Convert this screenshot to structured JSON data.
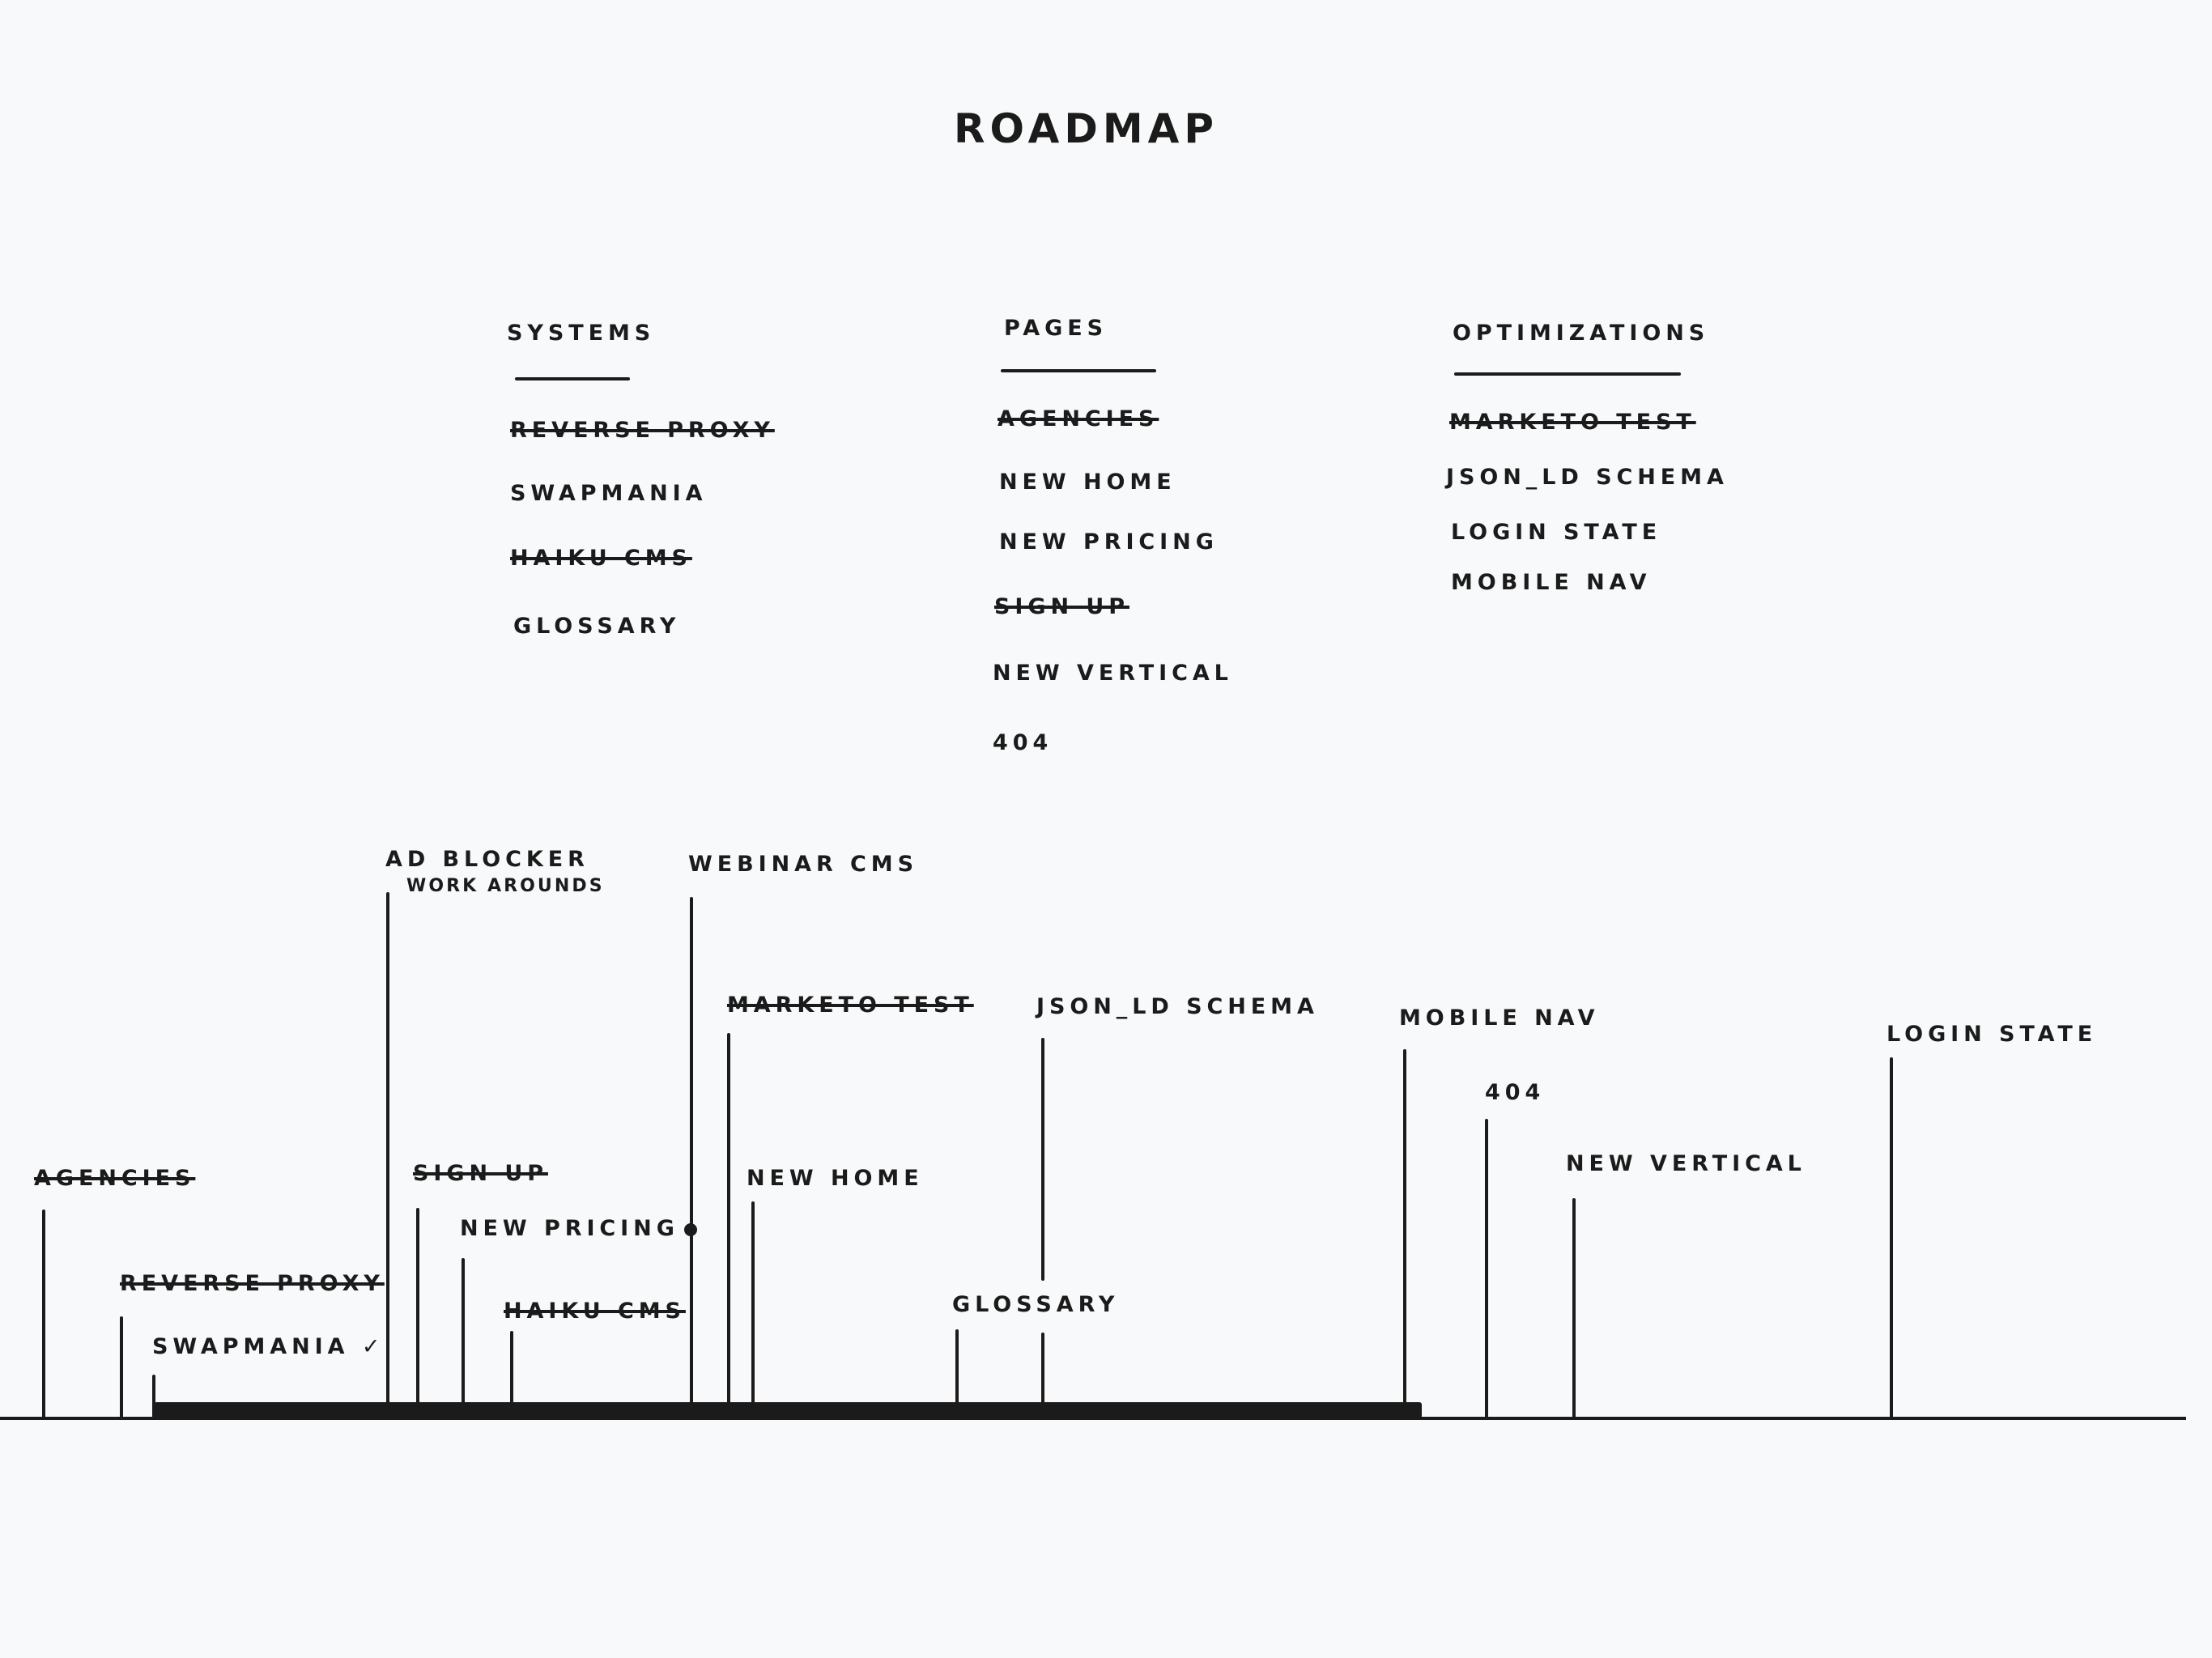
{
  "title": "ROADMAP",
  "lists": {
    "systems": {
      "header": "SYSTEMS",
      "items": [
        {
          "label": "REVERSE PROXY",
          "done": true
        },
        {
          "label": "SWAPMANIA",
          "done": false
        },
        {
          "label": "HAIKU CMS",
          "done": true
        },
        {
          "label": "GLOSSARY",
          "done": false
        }
      ]
    },
    "pages": {
      "header": "PAGES",
      "items": [
        {
          "label": "AGENCIES",
          "done": true
        },
        {
          "label": "NEW HOME",
          "done": false
        },
        {
          "label": "NEW PRICING",
          "done": false
        },
        {
          "label": "SIGN UP",
          "done": true
        },
        {
          "label": "NEW VERTICAL",
          "done": false
        },
        {
          "label": "404",
          "done": false
        }
      ]
    },
    "optimizations": {
      "header": "OPTIMIZATIONS",
      "items": [
        {
          "label": "MARKETO TEST",
          "done": true
        },
        {
          "label": "JSON_LD SCHEMA",
          "done": false
        },
        {
          "label": "LOGIN STATE",
          "done": false
        },
        {
          "label": "MOBILE NAV",
          "done": false
        }
      ]
    }
  },
  "timeline": {
    "items": [
      {
        "label": "AGENCIES",
        "done": true
      },
      {
        "label": "REVERSE PROXY",
        "done": true
      },
      {
        "label": "SWAPMANIA",
        "done": false,
        "mark": "✓"
      },
      {
        "label": "AD BLOCKER",
        "sublabel": "WORK AROUNDS",
        "done": false
      },
      {
        "label": "SIGN UP",
        "done": true
      },
      {
        "label": "NEW PRICING",
        "done": false,
        "mark": "●"
      },
      {
        "label": "HAIKU CMS",
        "done": true
      },
      {
        "label": "WEBINAR CMS",
        "done": false
      },
      {
        "label": "MARKETO TEST",
        "done": true
      },
      {
        "label": "NEW HOME",
        "done": false
      },
      {
        "label": "GLOSSARY",
        "done": false
      },
      {
        "label": "JSON_LD SCHEMA",
        "done": false
      },
      {
        "label": "MOBILE NAV",
        "done": false
      },
      {
        "label": "404",
        "done": false
      },
      {
        "label": "NEW VERTICAL",
        "done": false
      },
      {
        "label": "LOGIN STATE",
        "done": false
      }
    ]
  }
}
